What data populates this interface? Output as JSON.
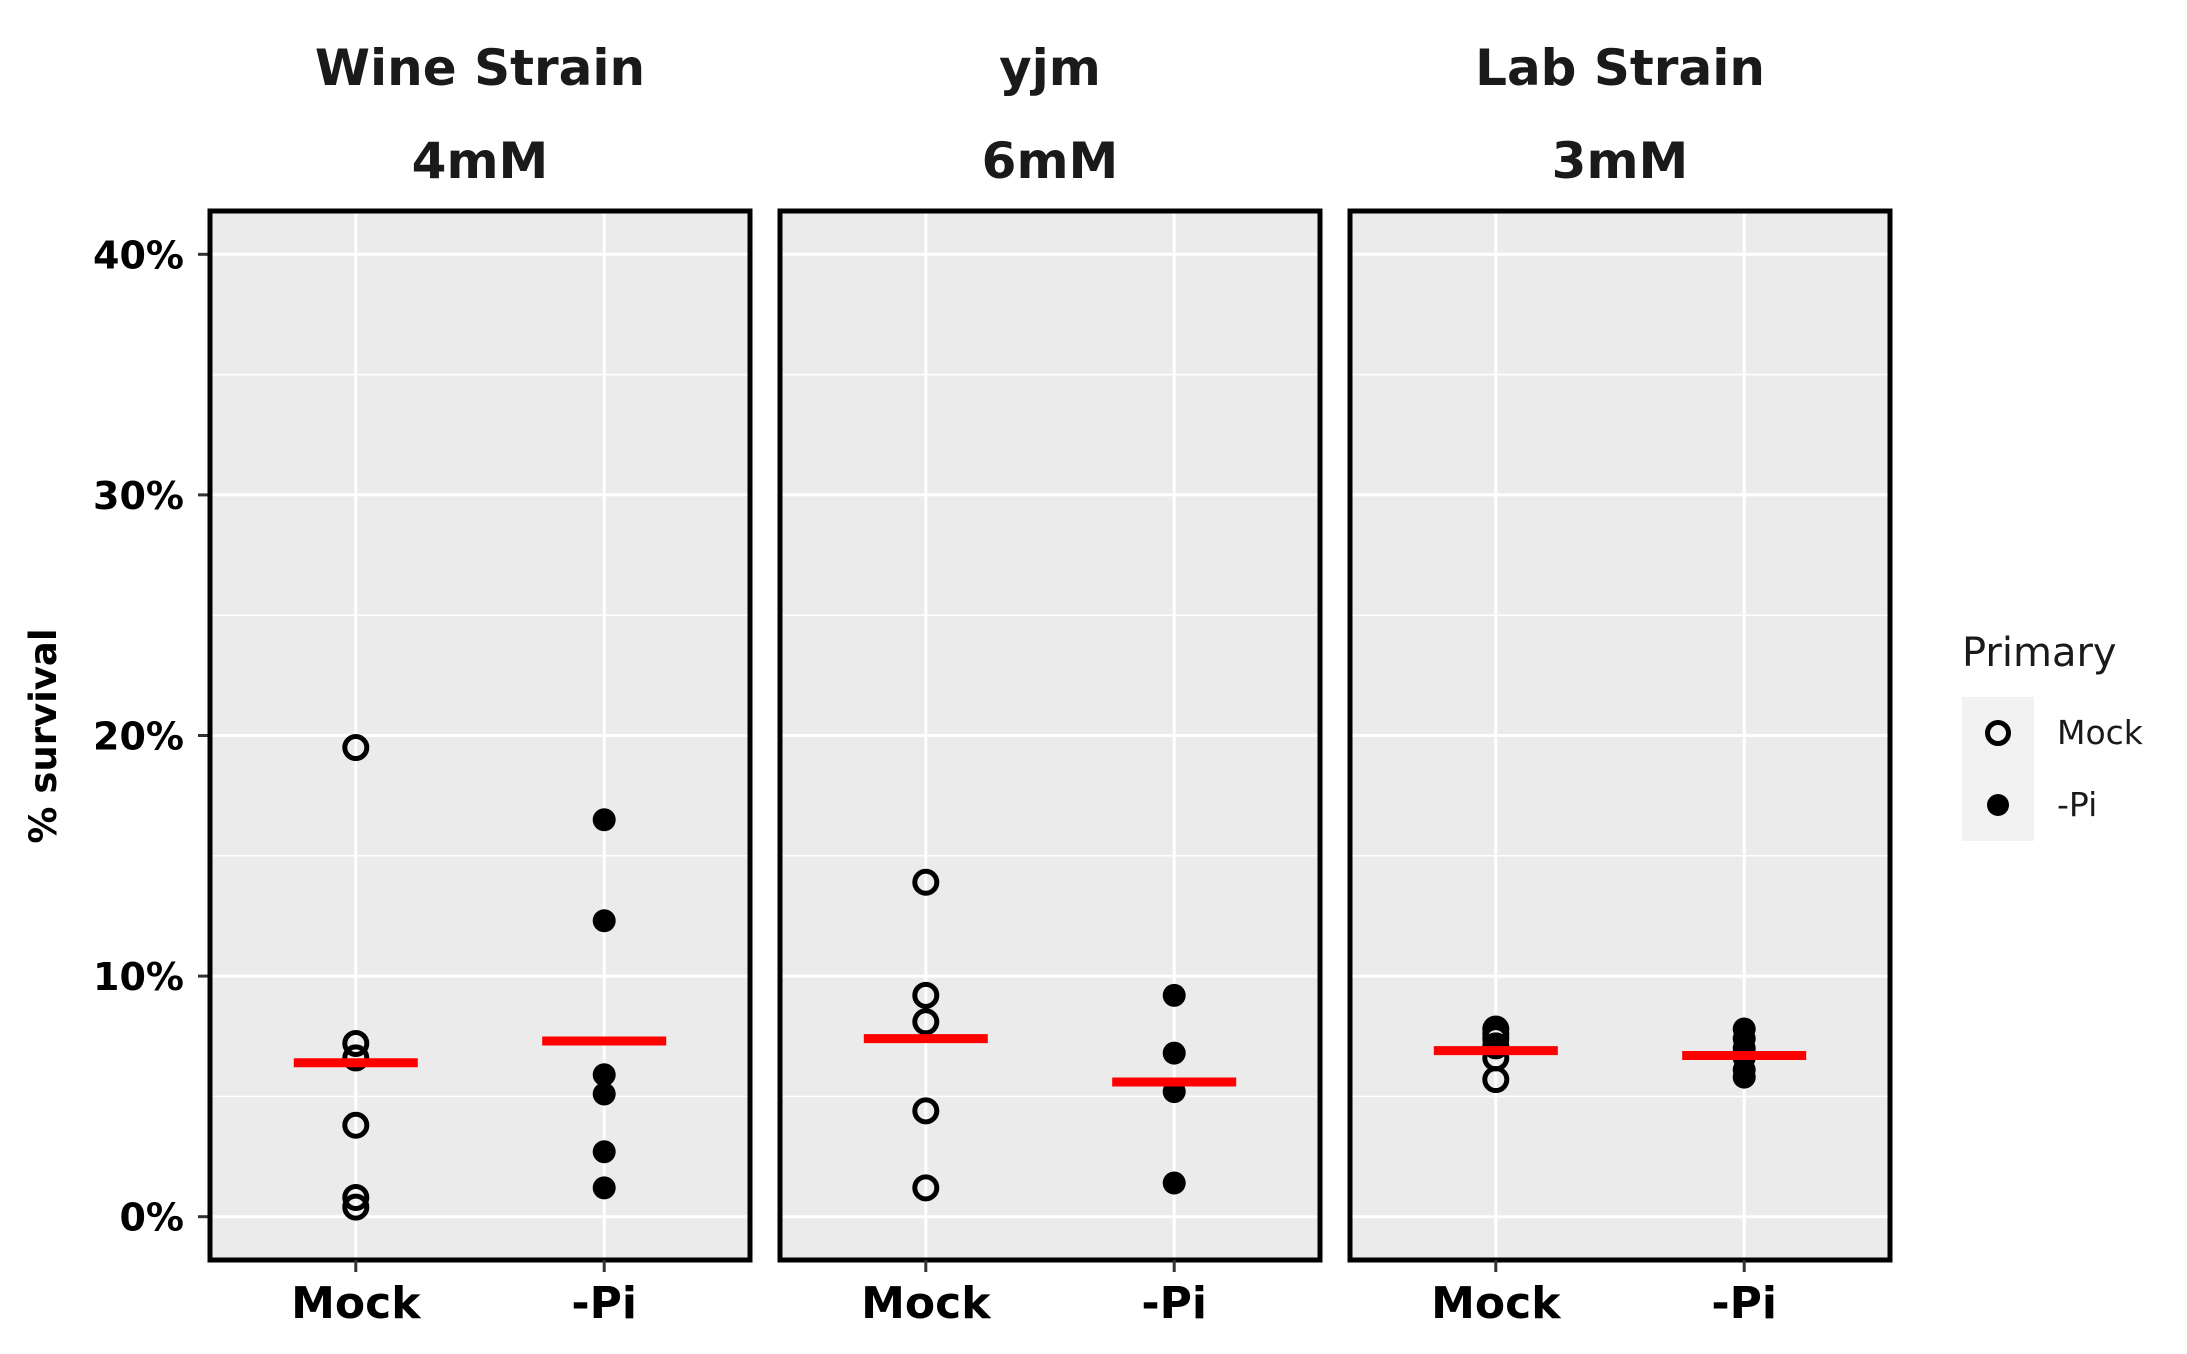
{
  "chart_data": {
    "type": "scatter",
    "ylabel": "% survival",
    "xlabel": "",
    "ylim": [
      -0.018,
      0.418
    ],
    "y_ticks": [
      0,
      0.1,
      0.2,
      0.3,
      0.4
    ],
    "y_tick_labels": [
      "0%",
      "10%",
      "20%",
      "30%",
      "40%"
    ],
    "categories": [
      "Mock",
      "-Pi"
    ],
    "grid": true,
    "legend": {
      "title": "Primary",
      "placement": "right",
      "entries": [
        {
          "label": "Mock",
          "marker": "open-circle"
        },
        {
          "label": "-Pi",
          "marker": "filled-circle"
        }
      ]
    },
    "mean_line_color": "#ff0000",
    "panel_background": "#ebebeb",
    "panels": [
      {
        "strip_line1": "Wine Strain",
        "strip_line2": "4mM",
        "groups": [
          {
            "category": "Mock",
            "values": [
              0.195,
              0.072,
              0.066,
              0.038,
              0.008,
              0.004
            ],
            "mean": 0.064
          },
          {
            "category": "-Pi",
            "values": [
              0.165,
              0.123,
              0.059,
              0.051,
              0.027,
              0.012
            ],
            "mean": 0.073
          }
        ]
      },
      {
        "strip_line1": "yjm",
        "strip_line2": "6mM",
        "groups": [
          {
            "category": "Mock",
            "values": [
              0.139,
              0.092,
              0.081,
              0.044,
              0.012
            ],
            "mean": 0.074
          },
          {
            "category": "-Pi",
            "values": [
              0.092,
              0.068,
              0.052,
              0.014
            ],
            "mean": 0.056
          }
        ]
      },
      {
        "strip_line1": "Lab Strain",
        "strip_line2": "3mM",
        "groups": [
          {
            "category": "Mock",
            "values": [
              0.078,
              0.076,
              0.074,
              0.071,
              0.066,
              0.057
            ],
            "mean": 0.069
          },
          {
            "category": "-Pi",
            "values": [
              0.078,
              0.074,
              0.07,
              0.066,
              0.061,
              0.058
            ],
            "mean": 0.067
          }
        ]
      }
    ]
  }
}
